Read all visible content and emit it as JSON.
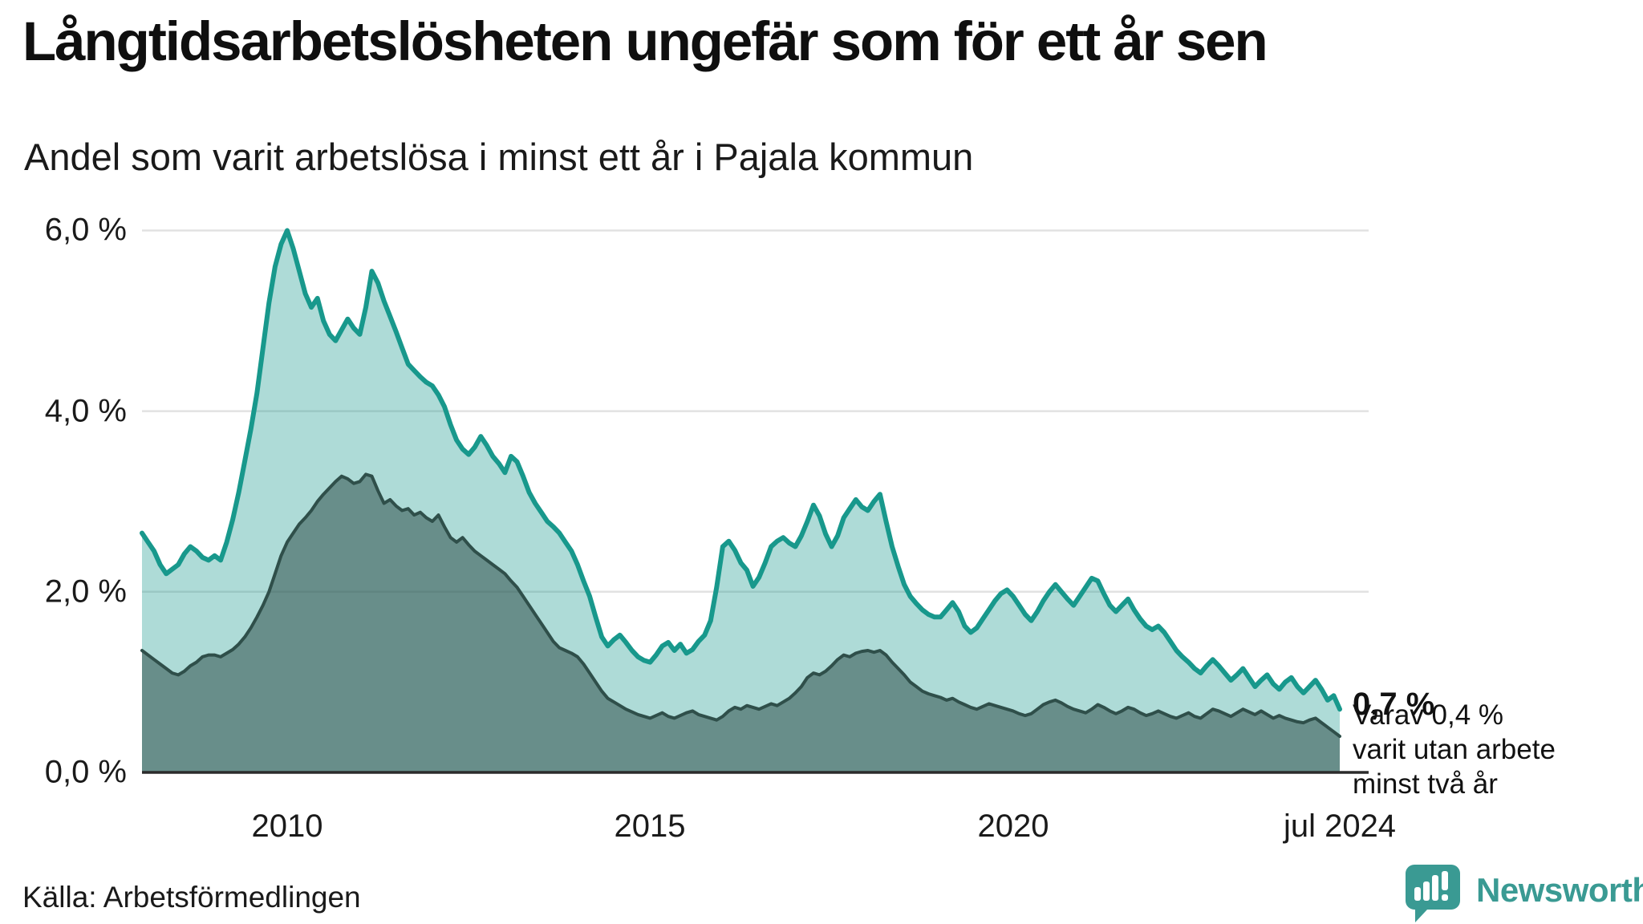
{
  "header": {
    "title": "Långtidsarbetslösheten ungefär som för ett år sen",
    "subtitle": "Andel som varit arbetslösa i minst ett år i Pajala kommun"
  },
  "axis": {
    "y_ticks": [
      "6,0 %",
      "4,0 %",
      "2,0 %",
      "0,0 %"
    ],
    "x_ticks": [
      "2010",
      "2015",
      "2020",
      "jul 2024"
    ]
  },
  "annotation": {
    "value_label": "0,7 %",
    "note_line1": "Varav 0,4 %",
    "note_line2": "varit utan arbete",
    "note_line3": "minst två år"
  },
  "footer": {
    "source": "Källa: Arbetsförmedlingen",
    "brand": "Newsworthy"
  },
  "palette": {
    "teal_line": "#18988c",
    "teal_fill": "rgba(24,152,140,0.35)",
    "dark_line": "#2f4f4a",
    "dark_fill": "rgba(47,79,74,0.55)",
    "gridline": "#e2e2e2",
    "axis_line": "#2b2b2b",
    "brand_teal": "#3a9a93"
  },
  "chart_data": {
    "type": "area",
    "title": "Långtidsarbetslösheten ungefär som för ett år sen",
    "subtitle": "Andel som varit arbetslösa i minst ett år i Pajala kommun",
    "unit": "%",
    "x_start": "2008-01",
    "x_end": "2024-07",
    "x_frequency": "monthly",
    "x_tick_labels": [
      "2010",
      "2015",
      "2020",
      "jul 2024"
    ],
    "y_tick_values": [
      0,
      2,
      4,
      6
    ],
    "ylim": [
      0,
      6.4
    ],
    "grid": "horizontal",
    "legend_position": "none",
    "annotation_last_values": {
      "minst_ett_ar": 0.7,
      "minst_tva_ar": 0.4
    },
    "series": [
      {
        "name": "Arbetslösa minst ett år",
        "values": [
          2.65,
          2.55,
          2.45,
          2.3,
          2.2,
          2.25,
          2.3,
          2.42,
          2.5,
          2.45,
          2.38,
          2.35,
          2.4,
          2.35,
          2.55,
          2.8,
          3.1,
          3.45,
          3.8,
          4.2,
          4.7,
          5.2,
          5.6,
          5.85,
          6.0,
          5.8,
          5.55,
          5.3,
          5.15,
          5.25,
          5.0,
          4.85,
          4.78,
          4.9,
          5.02,
          4.92,
          4.85,
          5.15,
          5.55,
          5.42,
          5.22,
          5.05,
          4.88,
          4.7,
          4.52,
          4.45,
          4.38,
          4.32,
          4.28,
          4.18,
          4.05,
          3.85,
          3.68,
          3.58,
          3.52,
          3.6,
          3.72,
          3.62,
          3.5,
          3.42,
          3.32,
          3.5,
          3.44,
          3.28,
          3.1,
          2.98,
          2.88,
          2.78,
          2.72,
          2.65,
          2.55,
          2.45,
          2.3,
          2.12,
          1.95,
          1.72,
          1.5,
          1.4,
          1.47,
          1.52,
          1.44,
          1.35,
          1.28,
          1.24,
          1.22,
          1.3,
          1.4,
          1.44,
          1.35,
          1.42,
          1.32,
          1.36,
          1.45,
          1.52,
          1.68,
          2.05,
          2.5,
          2.56,
          2.46,
          2.32,
          2.24,
          2.06,
          2.16,
          2.32,
          2.5,
          2.56,
          2.6,
          2.54,
          2.5,
          2.62,
          2.78,
          2.96,
          2.84,
          2.64,
          2.5,
          2.62,
          2.82,
          2.92,
          3.02,
          2.94,
          2.9,
          3.0,
          3.08,
          2.78,
          2.5,
          2.28,
          2.08,
          1.95,
          1.87,
          1.8,
          1.75,
          1.72,
          1.72,
          1.8,
          1.88,
          1.78,
          1.62,
          1.55,
          1.6,
          1.7,
          1.8,
          1.9,
          1.98,
          2.02,
          1.95,
          1.85,
          1.75,
          1.68,
          1.78,
          1.9,
          2.0,
          2.08,
          2.0,
          1.92,
          1.85,
          1.95,
          2.05,
          2.15,
          2.12,
          1.98,
          1.85,
          1.78,
          1.85,
          1.92,
          1.8,
          1.7,
          1.62,
          1.58,
          1.62,
          1.55,
          1.45,
          1.35,
          1.28,
          1.22,
          1.15,
          1.1,
          1.18,
          1.25,
          1.18,
          1.1,
          1.02,
          1.08,
          1.15,
          1.05,
          0.95,
          1.02,
          1.08,
          0.98,
          0.92,
          1.0,
          1.05,
          0.95,
          0.88,
          0.95,
          1.02,
          0.92,
          0.8,
          0.85,
          0.7
        ]
      },
      {
        "name": "Varav utan arbete minst två år",
        "values": [
          1.35,
          1.3,
          1.25,
          1.2,
          1.15,
          1.1,
          1.08,
          1.12,
          1.18,
          1.22,
          1.28,
          1.3,
          1.3,
          1.28,
          1.32,
          1.36,
          1.42,
          1.5,
          1.6,
          1.72,
          1.85,
          2.0,
          2.2,
          2.4,
          2.55,
          2.65,
          2.75,
          2.82,
          2.9,
          3.0,
          3.08,
          3.15,
          3.22,
          3.28,
          3.25,
          3.2,
          3.22,
          3.3,
          3.28,
          3.12,
          2.98,
          3.02,
          2.95,
          2.9,
          2.92,
          2.85,
          2.88,
          2.82,
          2.78,
          2.85,
          2.72,
          2.6,
          2.55,
          2.6,
          2.52,
          2.45,
          2.4,
          2.35,
          2.3,
          2.25,
          2.2,
          2.12,
          2.05,
          1.95,
          1.85,
          1.75,
          1.65,
          1.55,
          1.45,
          1.38,
          1.35,
          1.32,
          1.28,
          1.2,
          1.1,
          1.0,
          0.9,
          0.82,
          0.78,
          0.74,
          0.7,
          0.67,
          0.64,
          0.62,
          0.6,
          0.63,
          0.66,
          0.62,
          0.6,
          0.63,
          0.66,
          0.68,
          0.64,
          0.62,
          0.6,
          0.58,
          0.62,
          0.68,
          0.72,
          0.7,
          0.74,
          0.72,
          0.7,
          0.73,
          0.76,
          0.74,
          0.78,
          0.82,
          0.88,
          0.95,
          1.05,
          1.1,
          1.08,
          1.12,
          1.18,
          1.25,
          1.3,
          1.28,
          1.32,
          1.34,
          1.35,
          1.33,
          1.35,
          1.3,
          1.22,
          1.15,
          1.08,
          1.0,
          0.95,
          0.9,
          0.87,
          0.85,
          0.83,
          0.8,
          0.82,
          0.78,
          0.75,
          0.72,
          0.7,
          0.73,
          0.76,
          0.74,
          0.72,
          0.7,
          0.68,
          0.65,
          0.63,
          0.65,
          0.7,
          0.75,
          0.78,
          0.8,
          0.77,
          0.73,
          0.7,
          0.68,
          0.66,
          0.7,
          0.75,
          0.72,
          0.68,
          0.65,
          0.68,
          0.72,
          0.7,
          0.66,
          0.63,
          0.65,
          0.68,
          0.65,
          0.62,
          0.6,
          0.63,
          0.66,
          0.62,
          0.6,
          0.65,
          0.7,
          0.68,
          0.65,
          0.62,
          0.66,
          0.7,
          0.67,
          0.64,
          0.68,
          0.64,
          0.6,
          0.63,
          0.6,
          0.58,
          0.56,
          0.55,
          0.58,
          0.6,
          0.55,
          0.5,
          0.45,
          0.4
        ]
      }
    ]
  }
}
